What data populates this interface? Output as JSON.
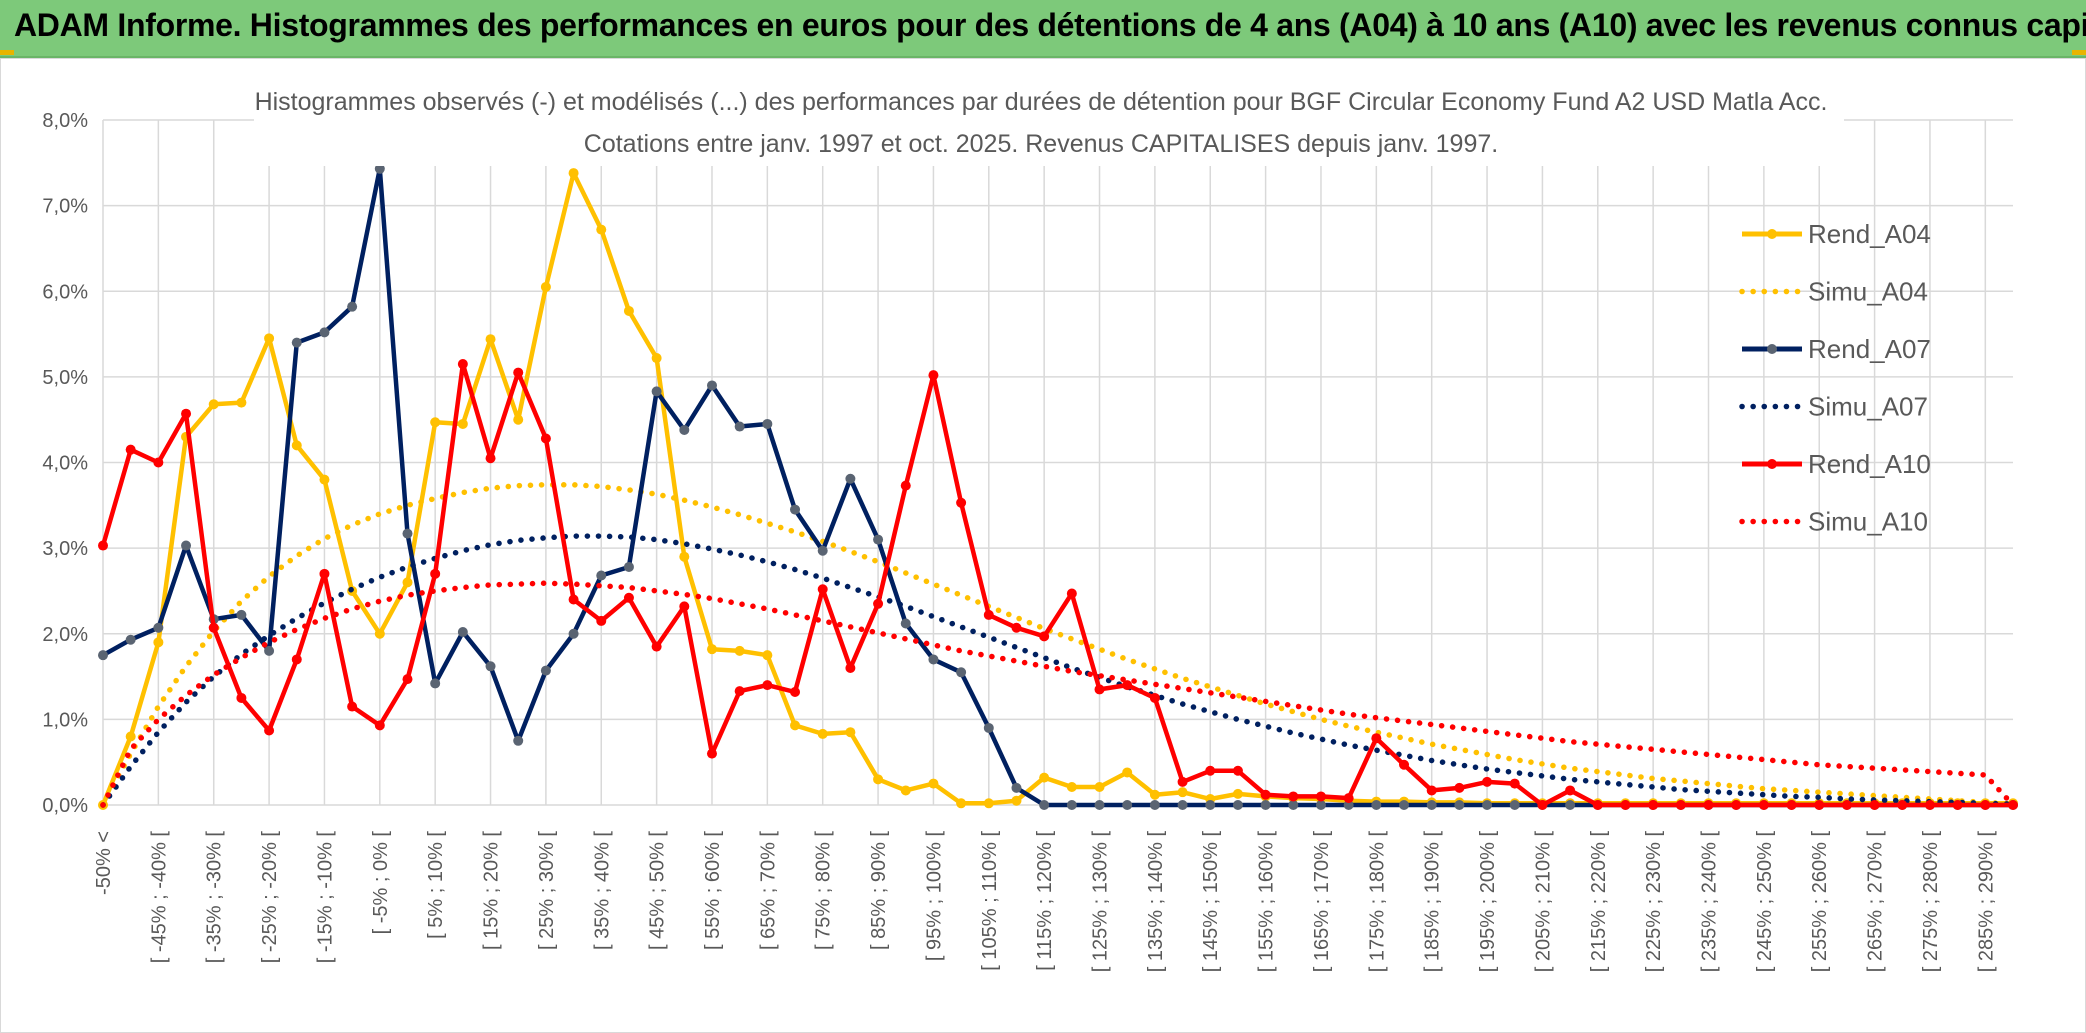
{
  "banner": {
    "title": "ADAM Informe. Histogrammes des performances en euros pour des détentions de 4 ans (A04) à 10 ans (A10) avec les revenus connus capitalisés"
  },
  "colors": {
    "banner_bg": "#7dc97a",
    "A04": "#ffc000",
    "A07": "#002060",
    "A10": "#ff0000",
    "A07_marker": "#5a6472",
    "grid": "#d9d9d9"
  },
  "chart_data": {
    "type": "line",
    "title": "Histogrammes observés (-) et modélisés (...) des performances par durées de détention pour BGF Circular Economy Fund A2 USD Matla Acc.",
    "subtitle": "Cotations entre janv. 1997 et oct. 2025. Revenus CAPITALISES depuis janv. 1997.",
    "xlabel": "",
    "ylabel": "",
    "ylim": [
      0,
      8
    ],
    "y_ticks": [
      "0,0%",
      "1,0%",
      "2,0%",
      "3,0%",
      "4,0%",
      "5,0%",
      "6,0%",
      "7,0%",
      "8,0%"
    ],
    "grid": true,
    "legend_position": "top-right",
    "x_tick_labels": [
      "-50% <",
      "[ -45% ; -40% [",
      "[ -35% ; -30% [",
      "[ -25% ; -20% [",
      "[ -15% ; -10% [",
      "[ -5% ; 0% [",
      "[ 5% ; 10% [",
      "[ 15% ; 20% [",
      "[ 25% ; 30% [",
      "[ 35% ; 40% [",
      "[ 45% ; 50% [",
      "[ 55% ; 60% [",
      "[ 65% ; 70% [",
      "[ 75% ; 80% [",
      "[ 85% ; 90% [",
      "[ 95% ; 100% [",
      "[ 105% ; 110% [",
      "[ 115% ; 120% [",
      "[ 125% ; 130% [",
      "[ 135% ; 140% [",
      "[ 145% ; 150% [",
      "[ 155% ; 160% [",
      "[ 165% ; 170% [",
      "[ 175% ; 180% [",
      "[ 185% ; 190% [",
      "[ 195% ; 200% [",
      "[ 205% ; 210% [",
      "[ 215% ; 220% [",
      "[ 225% ; 230% [",
      "[ 235% ; 240% [",
      "[ 245% ; 250% [",
      "[ 255% ; 260% [",
      "[ 265% ; 270% [",
      "[ 275% ; 280% [",
      "[ 285% ; 290% ["
    ],
    "n_categories": 70,
    "series": [
      {
        "name": "Rend_A04",
        "style": "solid",
        "color": "#ffc000",
        "values": [
          0.0,
          0.8,
          1.9,
          4.3,
          4.68,
          4.7,
          5.45,
          4.2,
          3.8,
          2.5,
          2.0,
          2.6,
          4.47,
          4.45,
          5.44,
          4.5,
          6.05,
          7.38,
          6.72,
          5.77,
          5.22,
          2.9,
          1.82,
          1.8,
          1.75,
          0.93,
          0.83,
          0.85,
          0.3,
          0.17,
          0.25,
          0.02,
          0.02,
          0.05,
          0.32,
          0.21,
          0.21,
          0.38,
          0.12,
          0.15,
          0.07,
          0.13,
          0.1,
          0.08,
          0.07,
          0.05,
          0.04,
          0.04,
          0.03,
          0.03,
          0.02,
          0.02,
          0.02,
          0.02,
          0.02,
          0.02,
          0.02,
          0.02,
          0.02,
          0.02,
          0.02,
          0.02,
          0.02,
          0.02,
          0.02,
          0.02,
          0.02,
          0.02,
          0.02,
          0.02
        ]
      },
      {
        "name": "Simu_A04",
        "style": "dotted",
        "color": "#ffc000",
        "values": [
          0.0,
          0.6,
          1.15,
          1.62,
          2.03,
          2.38,
          2.67,
          2.91,
          3.11,
          3.27,
          3.4,
          3.5,
          3.58,
          3.65,
          3.7,
          3.73,
          3.74,
          3.74,
          3.72,
          3.68,
          3.63,
          3.56,
          3.48,
          3.39,
          3.29,
          3.19,
          3.08,
          2.96,
          2.84,
          2.71,
          2.58,
          2.45,
          2.32,
          2.19,
          2.06,
          1.94,
          1.82,
          1.7,
          1.59,
          1.48,
          1.38,
          1.28,
          1.18,
          1.09,
          1.0,
          0.92,
          0.85,
          0.78,
          0.71,
          0.65,
          0.59,
          0.53,
          0.48,
          0.43,
          0.39,
          0.35,
          0.31,
          0.28,
          0.25,
          0.22,
          0.19,
          0.17,
          0.15,
          0.13,
          0.11,
          0.09,
          0.07,
          0.05,
          0.03,
          0.01
        ]
      },
      {
        "name": "Rend_A07",
        "style": "solid",
        "color": "#002060",
        "values": [
          1.75,
          1.93,
          2.07,
          3.03,
          2.17,
          2.22,
          1.8,
          5.4,
          5.52,
          5.82,
          7.43,
          3.17,
          1.42,
          2.02,
          1.62,
          0.75,
          1.57,
          2.0,
          2.68,
          2.78,
          4.83,
          4.38,
          4.9,
          4.42,
          4.45,
          3.45,
          2.97,
          3.81,
          3.1,
          2.12,
          1.7,
          1.55,
          0.9,
          0.2,
          0.0,
          0.0,
          0.0,
          0.0,
          0.0,
          0.0,
          0.0,
          0.0,
          0.0,
          0.0,
          0.0,
          0.0,
          0.0,
          0.0,
          0.0,
          0.0,
          0.0,
          0.0,
          0.0,
          0.0,
          0.0,
          0.0,
          0.0,
          0.0,
          0.0,
          0.0,
          0.0,
          0.0,
          0.0,
          0.0,
          0.0,
          0.0,
          0.0,
          0.0,
          0.0,
          0.0
        ]
      },
      {
        "name": "Simu_A07",
        "style": "dotted",
        "color": "#002060",
        "values": [
          0.0,
          0.45,
          0.85,
          1.2,
          1.5,
          1.76,
          1.98,
          2.18,
          2.36,
          2.52,
          2.66,
          2.78,
          2.88,
          2.97,
          3.04,
          3.09,
          3.12,
          3.14,
          3.14,
          3.13,
          3.1,
          3.05,
          2.99,
          2.92,
          2.84,
          2.75,
          2.65,
          2.54,
          2.43,
          2.32,
          2.2,
          2.08,
          1.96,
          1.84,
          1.72,
          1.6,
          1.49,
          1.38,
          1.28,
          1.18,
          1.09,
          1.0,
          0.92,
          0.84,
          0.77,
          0.7,
          0.64,
          0.58,
          0.52,
          0.47,
          0.42,
          0.38,
          0.34,
          0.3,
          0.27,
          0.24,
          0.21,
          0.18,
          0.16,
          0.14,
          0.12,
          0.1,
          0.09,
          0.07,
          0.06,
          0.05,
          0.04,
          0.03,
          0.02,
          0.01
        ]
      },
      {
        "name": "Rend_A10",
        "style": "solid",
        "color": "#ff0000",
        "values": [
          3.03,
          4.15,
          4.0,
          4.57,
          2.07,
          1.25,
          0.87,
          1.7,
          2.7,
          1.15,
          0.93,
          1.47,
          2.7,
          5.15,
          4.05,
          5.05,
          4.28,
          2.4,
          2.15,
          2.42,
          1.85,
          2.32,
          0.6,
          1.33,
          1.4,
          1.32,
          2.52,
          1.6,
          2.35,
          3.73,
          5.02,
          3.53,
          2.22,
          2.07,
          1.97,
          2.47,
          1.35,
          1.4,
          1.25,
          0.27,
          0.4,
          0.4,
          0.12,
          0.1,
          0.1,
          0.08,
          0.78,
          0.47,
          0.17,
          0.2,
          0.27,
          0.25,
          0.0,
          0.17,
          0.0,
          0.0,
          0.0,
          0.0,
          0.0,
          0.0,
          0.0,
          0.0,
          0.0,
          0.0,
          0.0,
          0.0,
          0.0,
          0.0,
          0.0,
          0.0
        ]
      },
      {
        "name": "Simu_A10",
        "style": "dotted",
        "color": "#ff0000",
        "values": [
          0.0,
          0.65,
          1.0,
          1.28,
          1.52,
          1.72,
          1.9,
          2.05,
          2.18,
          2.29,
          2.38,
          2.45,
          2.5,
          2.54,
          2.57,
          2.58,
          2.59,
          2.58,
          2.56,
          2.54,
          2.5,
          2.46,
          2.41,
          2.35,
          2.29,
          2.22,
          2.15,
          2.08,
          2.01,
          1.94,
          1.87,
          1.8,
          1.74,
          1.68,
          1.62,
          1.56,
          1.51,
          1.46,
          1.41,
          1.36,
          1.31,
          1.26,
          1.21,
          1.16,
          1.11,
          1.06,
          1.02,
          0.98,
          0.94,
          0.9,
          0.86,
          0.82,
          0.78,
          0.74,
          0.71,
          0.68,
          0.65,
          0.62,
          0.59,
          0.56,
          0.53,
          0.5,
          0.47,
          0.45,
          0.43,
          0.41,
          0.39,
          0.37,
          0.35,
          0.0
        ]
      }
    ]
  }
}
